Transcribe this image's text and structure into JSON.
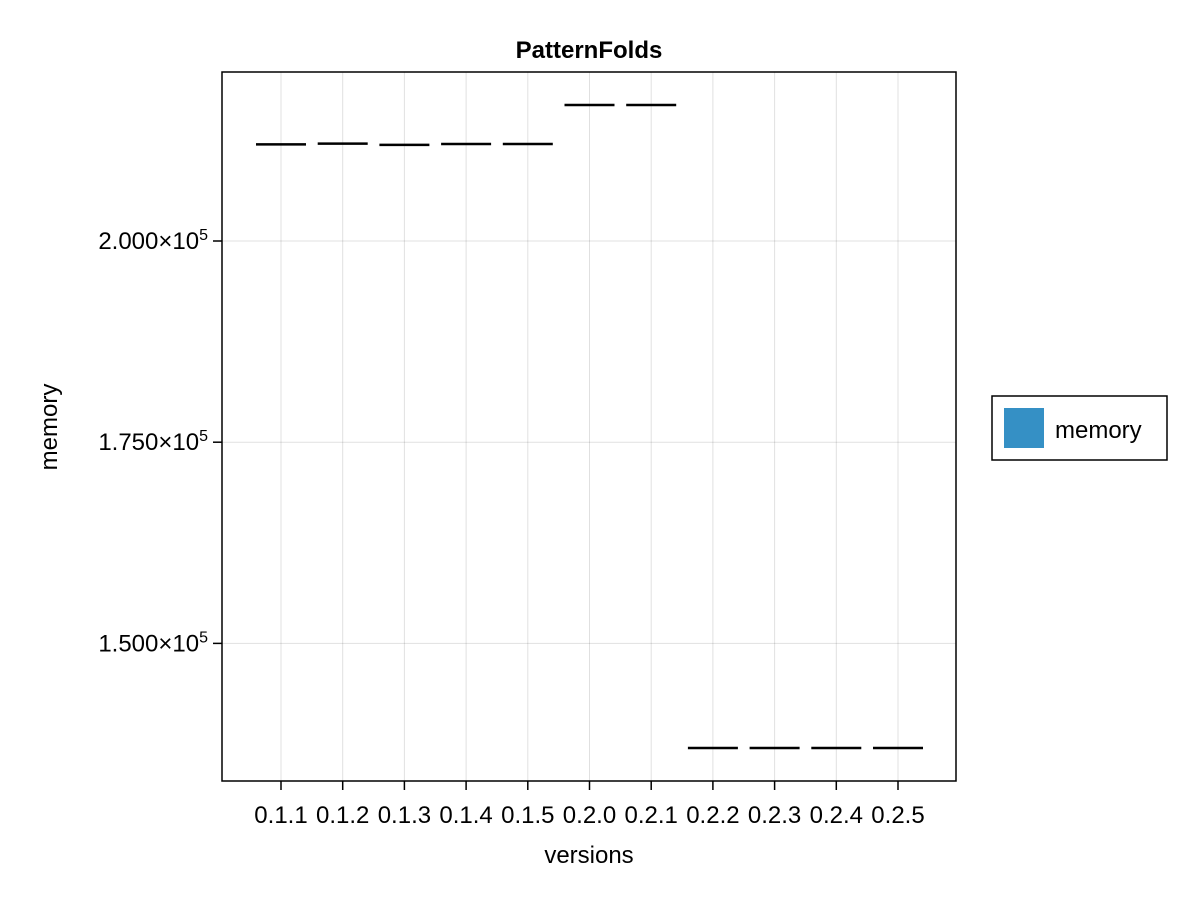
{
  "chart_data": {
    "type": "boxplot",
    "title": "PatternFolds",
    "xlabel": "versions",
    "ylabel": "memory",
    "categories": [
      "0.1.1",
      "0.1.2",
      "0.1.3",
      "0.1.4",
      "0.1.5",
      "0.2.0",
      "0.2.1",
      "0.2.2",
      "0.2.3",
      "0.2.4",
      "0.2.5"
    ],
    "series": [
      {
        "name": "memory",
        "color": "#3590c5",
        "values": [
          212000,
          212100,
          211950,
          212050,
          212050,
          216900,
          216900,
          137000,
          137000,
          137000,
          137000
        ]
      }
    ],
    "ylim": [
      132900,
      221000
    ],
    "yticks": [
      {
        "value": 150000,
        "mantissa": "1.500",
        "exponent": "5"
      },
      {
        "value": 175000,
        "mantissa": "1.750",
        "exponent": "5"
      },
      {
        "value": 200000,
        "mantissa": "2.000",
        "exponent": "5"
      }
    ],
    "grid": true,
    "legend": {
      "position": "right",
      "label": "memory"
    }
  }
}
